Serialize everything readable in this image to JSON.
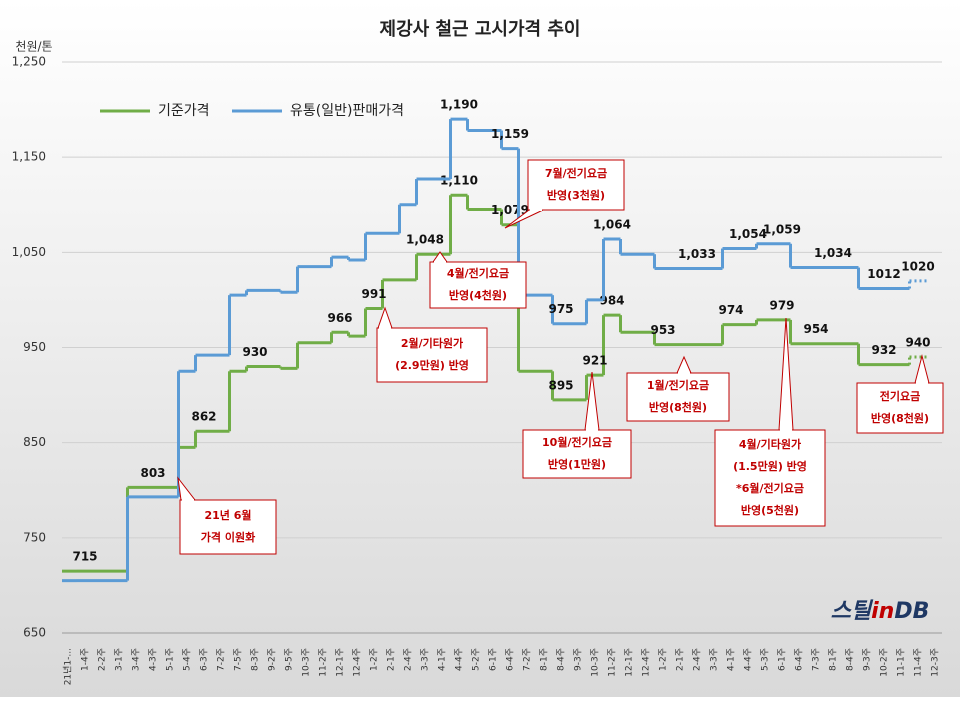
{
  "chart_data": {
    "type": "line",
    "title": "제강사 철근 고시가격 추이",
    "y_axis_label": "천원/톤",
    "ylim": [
      650,
      1250
    ],
    "yticks": [
      650,
      750,
      850,
      950,
      {
        "value": 1050,
        "label": "1,050"
      },
      {
        "value": 1150,
        "label": "1,150"
      },
      {
        "value": 1250,
        "label": "1,250"
      }
    ],
    "grid": true,
    "categories": [
      "21년1-...",
      "1-4주",
      "2-2주",
      "3-1주",
      "3-4주",
      "4-3주",
      "5-1주",
      "5-4주",
      "6-3주",
      "7-2주",
      "7-5주",
      "8-3주",
      "9-2주",
      "9-5주",
      "10-3주",
      "11-2주",
      "12-1주",
      "12-4주",
      "1-2주",
      "2-1주",
      "2-4주",
      "3-3주",
      "4-1주",
      "4-4주",
      "5-2주",
      "6-1주",
      "6-4주",
      "7-2주",
      "8-1주",
      "8-4주",
      "9-3주",
      "10-3주",
      "11-2주",
      "12-1주",
      "12-4주",
      "1-2주",
      "2-1주",
      "2-4주",
      "3-3주",
      "4-1주",
      "4-4주",
      "5-3주",
      "6-1주",
      "6-4주",
      "7-3주",
      "8-1주",
      "8-4주",
      "9-3주",
      "10-2주",
      "11-1주",
      "11-4주",
      "12-3주"
    ],
    "series": [
      {
        "name": "기준가격",
        "color": "#70ad47",
        "values": [
          715,
          715,
          715,
          715,
          803,
          803,
          803,
          845,
          862,
          862,
          925,
          930,
          930,
          928,
          955,
          955,
          966,
          962,
          991,
          1021,
          1021,
          1048,
          1048,
          1110,
          1095,
          1095,
          1079,
          925,
          925,
          895,
          895,
          921,
          984,
          966,
          966,
          953,
          953,
          953,
          953,
          974,
          974,
          979,
          979,
          954,
          954,
          954,
          954,
          932,
          932,
          932,
          940,
          null
        ],
        "value_labels": [
          null,
          "715",
          null,
          null,
          null,
          "803",
          null,
          null,
          "862",
          null,
          null,
          "930",
          null,
          null,
          null,
          null,
          "966",
          null,
          "991",
          null,
          null,
          "1,048",
          null,
          "1,110",
          null,
          null,
          "1,079",
          null,
          null,
          "895",
          null,
          "921",
          "984",
          null,
          null,
          "953",
          null,
          null,
          null,
          "974",
          null,
          null,
          "979",
          null,
          "954",
          null,
          null,
          null,
          "932",
          null,
          "940",
          null
        ]
      },
      {
        "name": "유통(일반)판매가격",
        "color": "#5b9bd5",
        "values": [
          705,
          705,
          705,
          705,
          793,
          793,
          793,
          925,
          942,
          942,
          1005,
          1010,
          1010,
          1008,
          1035,
          1035,
          1045,
          1042,
          1070,
          1070,
          1100,
          1127,
          1127,
          1190,
          1178,
          1178,
          1159,
          1005,
          1005,
          975,
          975,
          1000,
          1064,
          1048,
          1048,
          1033,
          1033,
          1033,
          1033,
          1054,
          1054,
          1059,
          1059,
          1034,
          1034,
          1034,
          1034,
          1012,
          1012,
          1012,
          1020,
          null
        ],
        "value_labels": [
          null,
          null,
          null,
          null,
          null,
          null,
          null,
          null,
          null,
          null,
          null,
          null,
          null,
          null,
          null,
          null,
          null,
          null,
          null,
          null,
          null,
          null,
          null,
          "1,190",
          null,
          null,
          "1,159",
          null,
          null,
          "975",
          null,
          null,
          "1,064",
          null,
          null,
          null,
          null,
          "1,033",
          null,
          null,
          "1,054",
          null,
          "1,059",
          null,
          null,
          "1,034",
          null,
          null,
          "1012",
          null,
          "1020",
          null
        ]
      }
    ],
    "annotations": [
      {
        "lines": [
          "21년 6월",
          "가격 이원화"
        ]
      },
      {
        "lines": [
          "2월/기타원가",
          "(2.9만원) 반영"
        ]
      },
      {
        "lines": [
          "4월/전기요금",
          "반영(4천원)"
        ]
      },
      {
        "lines": [
          "7월/전기요금",
          "반영(3천원)"
        ]
      },
      {
        "lines": [
          "10월/전기요금",
          "반영(1만원)"
        ]
      },
      {
        "lines": [
          "1월/전기요금",
          "반영(8천원)"
        ]
      },
      {
        "lines": [
          "4월/기타원가",
          "(1.5만원) 반영",
          "*6월/전기요금",
          "반영(5천원)"
        ]
      },
      {
        "lines": [
          "전기요금",
          "반영(8천원)"
        ]
      }
    ],
    "logo": [
      "스틸",
      "in",
      "DB"
    ]
  }
}
